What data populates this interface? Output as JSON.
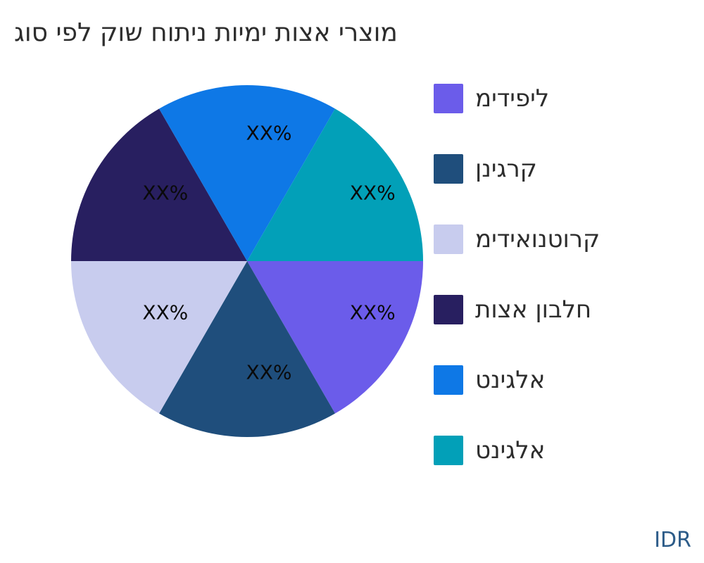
{
  "watermark": "IDR",
  "chart_data": {
    "type": "pie",
    "title": "גוס יפל קוש חותינ תוימי תוצא ירצומ",
    "start_angle": "east",
    "direction": "clockwise",
    "legend_position": "right",
    "grid": false,
    "slice_label_text": "XX%",
    "slices": [
      {
        "label": "מידיפיל",
        "pct_label": "XX%",
        "angle_deg": 60,
        "color": "#6B5CEA"
      },
      {
        "label": "ןניגרק",
        "pct_label": "XX%",
        "angle_deg": 60,
        "color": "#1F4E7C"
      },
      {
        "label": "מידיאונטורק",
        "pct_label": "XX%",
        "angle_deg": 60,
        "color": "#C8CCEE"
      },
      {
        "label": "תוצא ןובלח",
        "pct_label": "XX%",
        "angle_deg": 60,
        "color": "#281F60"
      },
      {
        "label": "טניגלא",
        "pct_label": "XX%",
        "angle_deg": 60,
        "color": "#0E78E6"
      },
      {
        "label": "טניגלא",
        "pct_label": "XX%",
        "angle_deg": 60,
        "color": "#02A0B8"
      }
    ]
  }
}
